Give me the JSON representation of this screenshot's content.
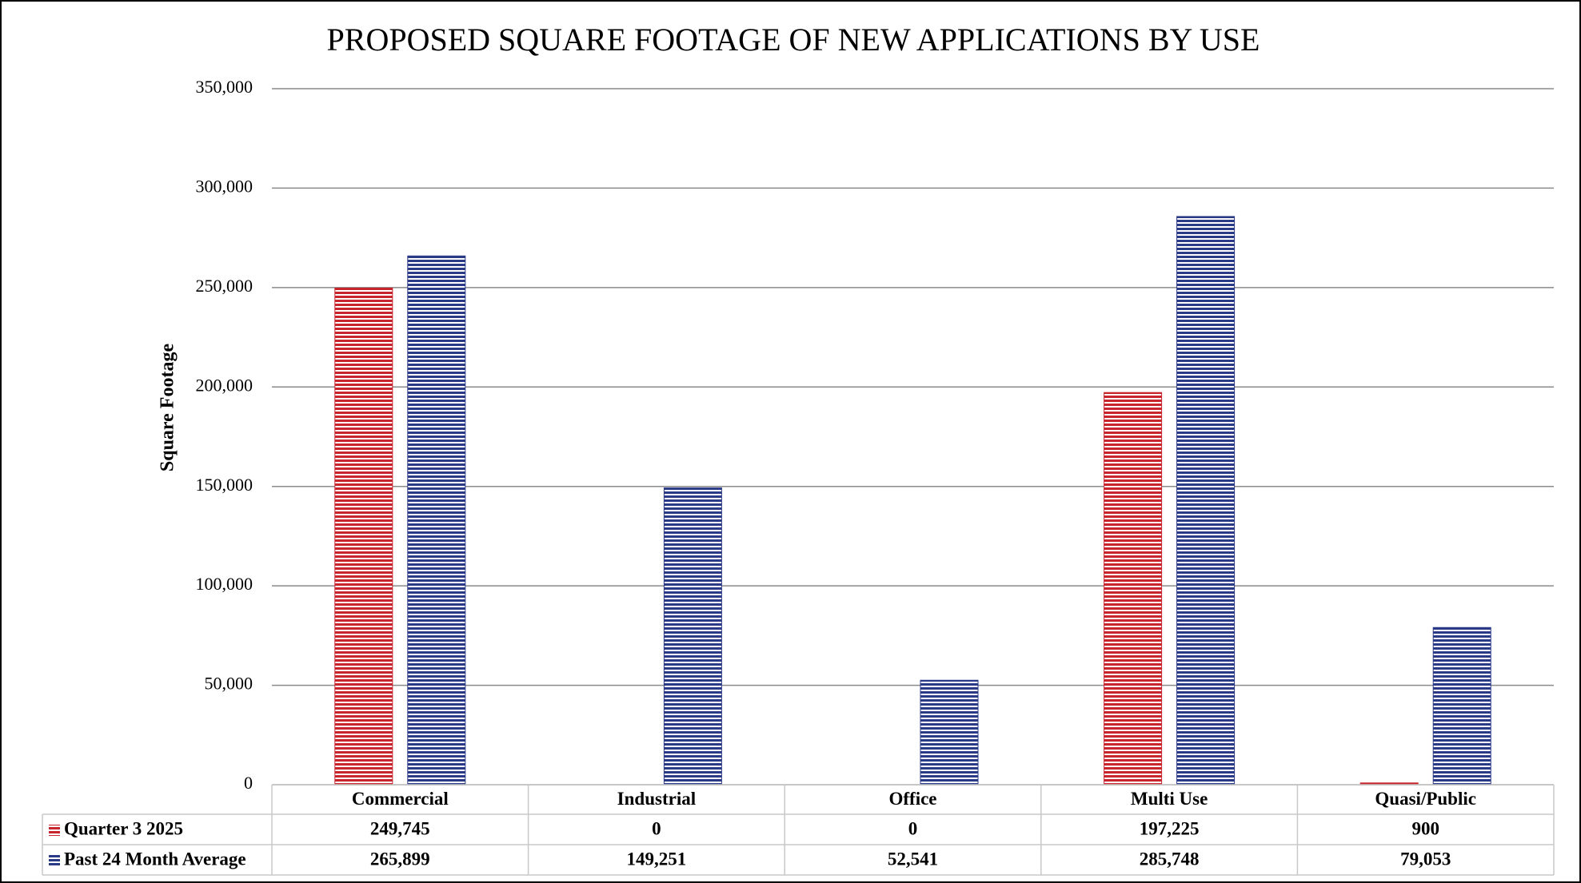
{
  "chart_data": {
    "type": "bar",
    "title": "PROPOSED SQUARE FOOTAGE OF NEW APPLICATIONS BY USE",
    "y_label": "Square Footage",
    "categories": [
      "Commercial",
      "Industrial",
      "Office",
      "Multi Use",
      "Quasi/Public"
    ],
    "series": [
      {
        "name": "Quarter 3 2025",
        "color": "#c8242c",
        "values": [
          249745,
          0,
          0,
          197225,
          900
        ],
        "value_labels": [
          "249,745",
          "0",
          "0",
          "197,225",
          "900"
        ]
      },
      {
        "name": "Past 24 Month Average",
        "color": "#2b3a86",
        "values": [
          265899,
          149251,
          52541,
          285748,
          79053
        ],
        "value_labels": [
          "265,899",
          "149,251",
          "52,541",
          "285,748",
          "79,053"
        ]
      }
    ],
    "ylim": [
      0,
      350000
    ],
    "yticks": [
      0,
      {
        "value": 50000,
        "label": "50,000"
      },
      {
        "value": 100000,
        "label": "100,000"
      },
      {
        "value": 150000,
        "label": "150,000"
      },
      {
        "value": 200000,
        "label": "200,000"
      },
      {
        "value": 250000,
        "label": "250,000"
      },
      {
        "value": 300000,
        "label": "300,000"
      },
      {
        "value": 350000,
        "label": "350,000"
      }
    ],
    "grid": true
  }
}
